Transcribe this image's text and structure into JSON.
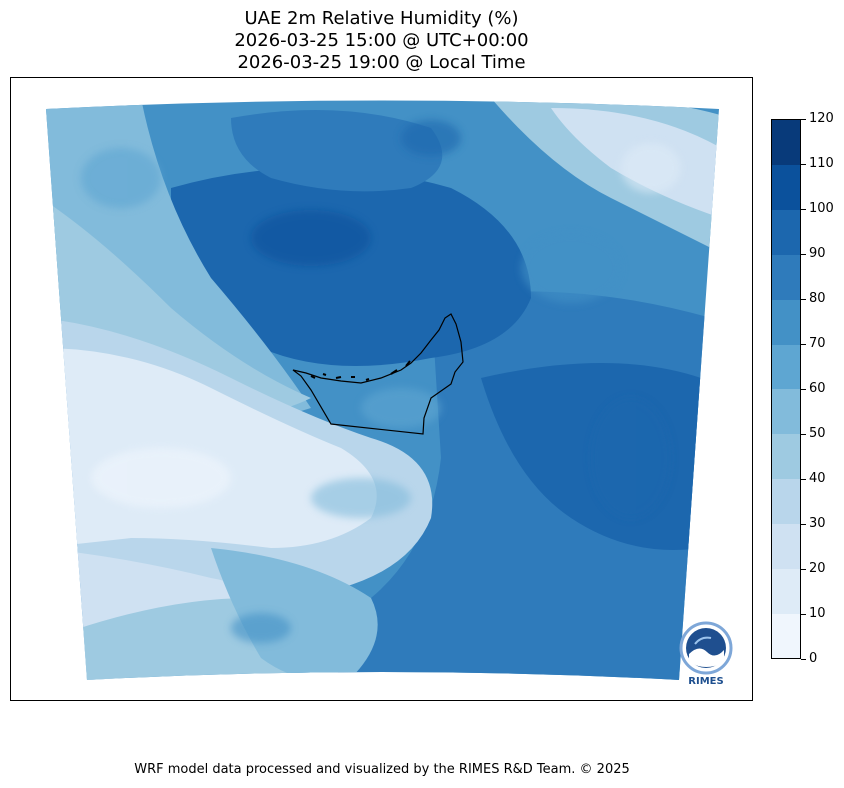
{
  "title": {
    "line1": "UAE 2m Relative Humidity (%)",
    "line2": "2026-03-25 15:00 @ UTC+00:00",
    "line3": "2026-03-25 19:00 @ Local Time"
  },
  "colorbar": {
    "ticks": [
      "0",
      "10",
      "20",
      "30",
      "40",
      "50",
      "60",
      "70",
      "80",
      "90",
      "100",
      "110",
      "120"
    ],
    "colors": [
      "#f0f6fd",
      "#deebf7",
      "#cfe1f2",
      "#b9d6eb",
      "#9ecae1",
      "#82bbdb",
      "#5ea6d2",
      "#4391c6",
      "#2f7bbb",
      "#1c67ae",
      "#0b519c",
      "#083a7a"
    ]
  },
  "logo": {
    "text": "RIMES",
    "icon": "rimes-globe-logo"
  },
  "credit": "WRF model data processed and visualized by the RIMES R&D Team. © 2025",
  "map": {
    "field": "relative-humidity",
    "region": "UAE"
  }
}
